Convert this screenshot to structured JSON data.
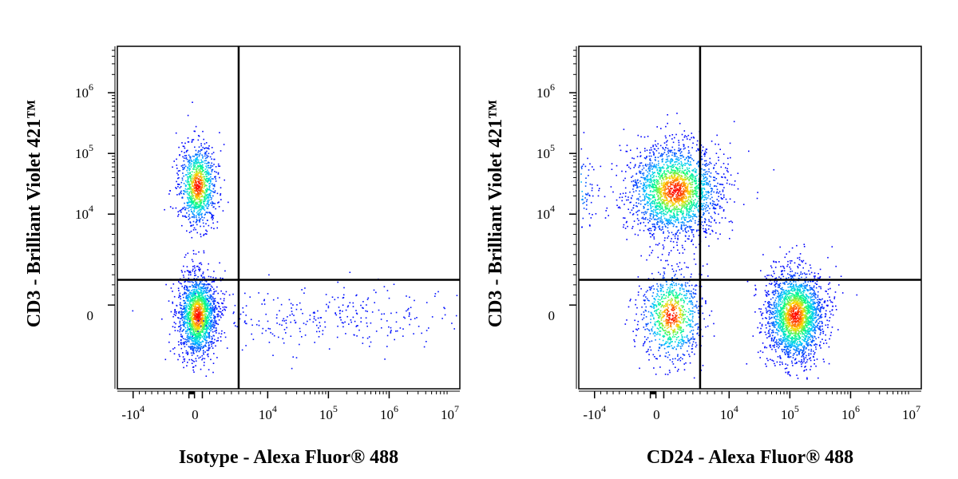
{
  "chart_data": [
    {
      "type": "scatter",
      "subtype": "flow-cytometry-density-plot",
      "xlabel": "Isotype - Alexa Fluor® 488",
      "ylabel": "CD3 - Brilliant Violet 421™",
      "x_scale": "biexponential",
      "y_scale": "biexponential",
      "x_ticks": [
        {
          "base": "-10",
          "exp": "4"
        },
        {
          "base": "0",
          "exp": ""
        },
        {
          "base": "10",
          "exp": "4"
        },
        {
          "base": "10",
          "exp": "5"
        },
        {
          "base": "10",
          "exp": "6"
        },
        {
          "base": "10",
          "exp": "7"
        }
      ],
      "y_ticks": [
        {
          "base": "0",
          "exp": ""
        },
        {
          "base": "10",
          "exp": "4"
        },
        {
          "base": "10",
          "exp": "5"
        },
        {
          "base": "10",
          "exp": "6"
        }
      ],
      "xlim": [
        -30000,
        10000000
      ],
      "ylim": [
        -5000,
        5000000
      ],
      "quadrant_gate": {
        "x": 6000,
        "y": 3500
      },
      "populations": [
        {
          "center": [
            300,
            30000
          ],
          "count": 1000,
          "spread": [
            1,
            1
          ]
        },
        {
          "center": [
            300,
            0
          ],
          "count": 1700,
          "spread": [
            1,
            1
          ]
        },
        {
          "center": [
            80000,
            0
          ],
          "count": 320,
          "spread": [
            1,
            1
          ],
          "diffuse": true
        }
      ],
      "colors": {
        "low": "#0000ff",
        "mid": "#00ff80",
        "high": "#ff0000"
      },
      "grid": false,
      "legend": "none"
    },
    {
      "type": "scatter",
      "subtype": "flow-cytometry-density-plot",
      "xlabel": "CD24 - Alexa Fluor® 488",
      "ylabel": "CD3 - Brilliant Violet 421™",
      "x_scale": "biexponential",
      "y_scale": "biexponential",
      "x_ticks": [
        {
          "base": "-10",
          "exp": "4"
        },
        {
          "base": "0",
          "exp": ""
        },
        {
          "base": "10",
          "exp": "4"
        },
        {
          "base": "10",
          "exp": "5"
        },
        {
          "base": "10",
          "exp": "6"
        },
        {
          "base": "10",
          "exp": "7"
        }
      ],
      "y_ticks": [
        {
          "base": "0",
          "exp": ""
        },
        {
          "base": "10",
          "exp": "4"
        },
        {
          "base": "10",
          "exp": "5"
        },
        {
          "base": "10",
          "exp": "6"
        }
      ],
      "xlim": [
        -30000,
        10000000
      ],
      "ylim": [
        -5000,
        5000000
      ],
      "quadrant_gate": {
        "x": 6000,
        "y": 3500
      },
      "populations": [
        {
          "center": [
            2500,
            25000
          ],
          "count": 2200,
          "spread": [
            2.4,
            1.1
          ]
        },
        {
          "center": [
            -15000,
            25000
          ],
          "count": 500,
          "spread": [
            1.4,
            1
          ]
        },
        {
          "center": [
            2000,
            0
          ],
          "count": 900,
          "spread": [
            1.6,
            1.1
          ]
        },
        {
          "center": [
            120000,
            0
          ],
          "count": 2200,
          "spread": [
            1.5,
            1.1
          ]
        }
      ],
      "colors": {
        "low": "#0000ff",
        "mid": "#00ff80",
        "high": "#ff0000"
      },
      "grid": false,
      "legend": "none"
    }
  ]
}
